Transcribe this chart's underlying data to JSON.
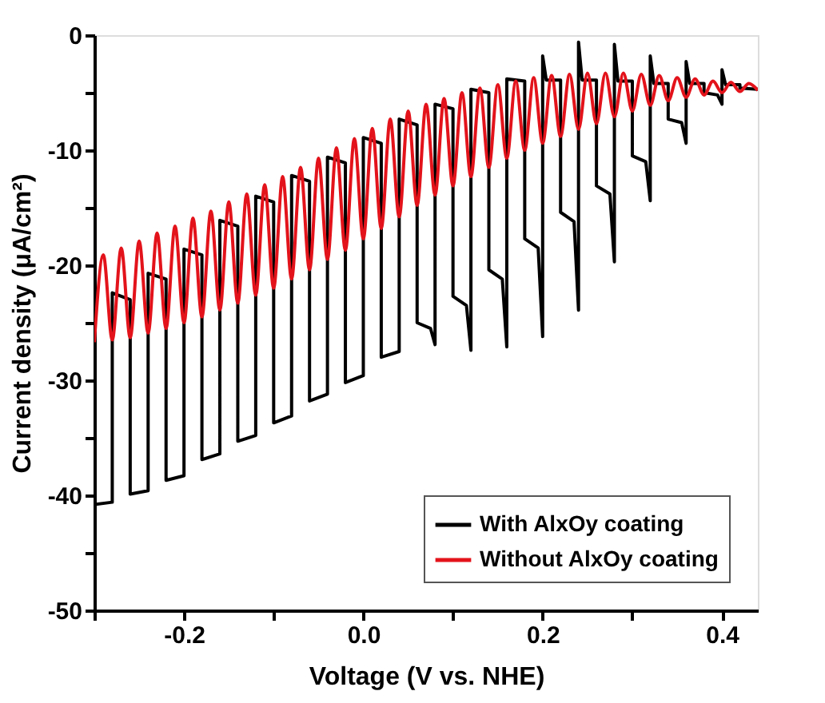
{
  "chart_data": {
    "type": "line",
    "xlabel": "Voltage (V vs. NHE)",
    "ylabel": "Current density (μA/cm²)",
    "xlim": [
      -0.3,
      0.44
    ],
    "ylim": [
      -50,
      0
    ],
    "xticks": [
      {
        "value": -0.3,
        "label": null
      },
      -0.2,
      {
        "value": -0.1,
        "label": null
      },
      {
        "value": 0,
        "label": "0.0"
      },
      {
        "value": 0.1,
        "label": null
      },
      0.2,
      {
        "value": 0.3,
        "label": null
      },
      0.4
    ],
    "yticks": [
      -50,
      {
        "value": -45,
        "label": null
      },
      -40,
      {
        "value": -35,
        "label": null
      },
      -30,
      {
        "value": -25,
        "label": null
      },
      -20,
      {
        "value": -15,
        "label": null
      },
      -10,
      {
        "value": -5,
        "label": null
      },
      0
    ],
    "grid": false,
    "legend": "bottom right",
    "marker": "none",
    "line_style": "solid",
    "series": [
      {
        "name": "With AlxOy coating",
        "color": "#000000",
        "x": [
          -0.3,
          -0.28,
          -0.28,
          -0.26,
          -0.26,
          -0.24,
          -0.24,
          -0.22,
          -0.22,
          -0.2,
          -0.2,
          -0.18,
          -0.18,
          -0.16,
          -0.16,
          -0.14,
          -0.14,
          -0.12,
          -0.12,
          -0.1,
          -0.1,
          -0.08,
          -0.08,
          -0.06,
          -0.06,
          -0.04,
          -0.04,
          -0.02,
          -0.02,
          0.0,
          0.0,
          0.02,
          0.02,
          0.04,
          0.04,
          0.06,
          0.06,
          0.075,
          0.08,
          0.08,
          0.1,
          0.1,
          0.115,
          0.12,
          0.12,
          0.14,
          0.14,
          0.155,
          0.16,
          0.16,
          0.18,
          0.18,
          0.195,
          0.2,
          0.2,
          0.204,
          0.22,
          0.22,
          0.235,
          0.24,
          0.24,
          0.244,
          0.26,
          0.26,
          0.275,
          0.28,
          0.28,
          0.284,
          0.3,
          0.3,
          0.315,
          0.32,
          0.32,
          0.324,
          0.34,
          0.34,
          0.355,
          0.36,
          0.36,
          0.364,
          0.38,
          0.38,
          0.395,
          0.4,
          0.4,
          0.404,
          0.42,
          0.42,
          0.44
        ],
        "values": [
          -40.8,
          -40.6,
          -22.4,
          -23.0,
          -39.9,
          -39.6,
          -20.7,
          -21.2,
          -38.7,
          -38.3,
          -18.6,
          -19.1,
          -36.9,
          -36.4,
          -16.1,
          -16.6,
          -35.3,
          -34.8,
          -14.0,
          -14.5,
          -33.7,
          -33.1,
          -12.2,
          -12.7,
          -31.8,
          -31.2,
          -10.6,
          -11.1,
          -30.2,
          -29.6,
          -8.9,
          -9.4,
          -28.0,
          -27.5,
          -7.3,
          -7.8,
          -25.0,
          -25.5,
          -26.9,
          -6.0,
          -6.4,
          -22.7,
          -23.5,
          -27.4,
          -4.7,
          -5.0,
          -20.4,
          -21.2,
          -27.1,
          -3.8,
          -4.0,
          -17.7,
          -18.5,
          -26.2,
          -1.8,
          -3.9,
          -3.9,
          -15.4,
          -16.2,
          -23.9,
          -0.6,
          -3.9,
          -3.9,
          -13.1,
          -13.8,
          -19.7,
          -0.8,
          -4.0,
          -4.0,
          -10.5,
          -11.0,
          -14.4,
          -1.8,
          -4.2,
          -4.2,
          -7.3,
          -7.6,
          -9.4,
          -2.3,
          -4.2,
          -4.2,
          -5.0,
          -5.2,
          -6.0,
          -3.0,
          -4.3,
          -4.3,
          -4.6,
          -4.7
        ]
      },
      {
        "name": "Without AlxOy coating",
        "color": "#e3131b",
        "x": [
          -0.3,
          -0.29,
          -0.28,
          -0.27,
          -0.26,
          -0.25,
          -0.24,
          -0.23,
          -0.22,
          -0.21,
          -0.2,
          -0.19,
          -0.18,
          -0.17,
          -0.16,
          -0.15,
          -0.14,
          -0.13,
          -0.12,
          -0.11,
          -0.1,
          -0.09,
          -0.08,
          -0.07,
          -0.06,
          -0.05,
          -0.04,
          -0.03,
          -0.02,
          -0.01,
          0.0,
          0.01,
          0.02,
          0.03,
          0.04,
          0.05,
          0.06,
          0.07,
          0.08,
          0.09,
          0.1,
          0.11,
          0.12,
          0.13,
          0.14,
          0.15,
          0.16,
          0.17,
          0.18,
          0.19,
          0.2,
          0.21,
          0.22,
          0.23,
          0.24,
          0.25,
          0.26,
          0.27,
          0.28,
          0.29,
          0.3,
          0.31,
          0.32,
          0.33,
          0.34,
          0.35,
          0.36,
          0.37,
          0.38,
          0.39,
          0.4,
          0.41,
          0.42,
          0.43,
          0.44
        ],
        "values": [
          -26.7,
          -19.1,
          -26.5,
          -18.5,
          -26.3,
          -17.9,
          -25.9,
          -17.2,
          -25.5,
          -16.6,
          -25.0,
          -15.9,
          -24.5,
          -15.3,
          -23.9,
          -14.5,
          -23.3,
          -13.8,
          -22.6,
          -13.0,
          -22.0,
          -12.3,
          -21.2,
          -11.5,
          -20.4,
          -10.7,
          -19.5,
          -9.8,
          -18.7,
          -9.0,
          -17.7,
          -8.1,
          -16.8,
          -7.3,
          -15.8,
          -6.6,
          -14.8,
          -6.0,
          -13.9,
          -5.5,
          -13.1,
          -5.0,
          -12.3,
          -4.6,
          -11.5,
          -4.3,
          -10.7,
          -4.0,
          -10.0,
          -3.7,
          -9.4,
          -3.5,
          -8.8,
          -3.4,
          -8.2,
          -3.3,
          -7.7,
          -3.3,
          -7.1,
          -3.3,
          -6.6,
          -3.4,
          -6.1,
          -3.5,
          -5.7,
          -3.7,
          -5.4,
          -3.8,
          -5.2,
          -4.0,
          -5.0,
          -4.1,
          -4.9,
          -4.2,
          -4.8
        ]
      }
    ]
  }
}
